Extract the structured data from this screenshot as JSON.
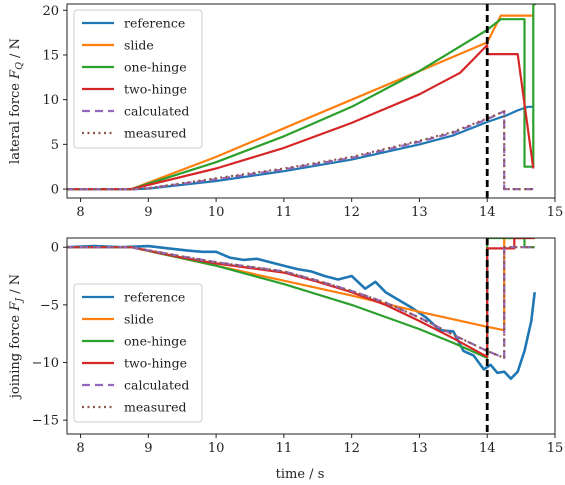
{
  "figure": {
    "xlabel": "time  / s",
    "marker_x": 14,
    "marker_style": "dashed-black"
  },
  "colors": {
    "reference": "#1f77b4",
    "slide": "#ff7f0e",
    "one-hinge": "#2ca02c",
    "two-hinge": "#d62728",
    "calculated": "#9467bd",
    "measured": "#8c564b",
    "marker": "#000000"
  },
  "chart_data": [
    {
      "type": "line",
      "ylabel": "lateral force F_Q  / N",
      "ylabel_main": "lateral force ",
      "ylabel_var": "F",
      "ylabel_sub": "Q",
      "ylabel_unit": "  / N",
      "xlim": [
        7.8,
        15.0
      ],
      "ylim": [
        -1,
        20.7
      ],
      "xticks": [
        8,
        9,
        10,
        11,
        12,
        13,
        14,
        15
      ],
      "yticks": [
        0,
        5,
        10,
        15,
        20
      ],
      "grid": false,
      "legend_position": "upper-left",
      "legend": [
        "reference",
        "slide",
        "one-hinge",
        "two-hinge",
        "calculated",
        "measured"
      ],
      "series": [
        {
          "name": "reference",
          "style": "solid",
          "color": "#1f77b4",
          "x": [
            7.8,
            8.8,
            9.0,
            10.0,
            11.0,
            12.0,
            13.0,
            13.5,
            14.0,
            14.3,
            14.45,
            14.6,
            14.68
          ],
          "y": [
            0,
            0,
            0.05,
            0.9,
            2.0,
            3.3,
            5.0,
            6.0,
            7.5,
            8.3,
            8.8,
            9.2,
            9.2
          ]
        },
        {
          "name": "slide",
          "style": "solid",
          "color": "#ff7f0e",
          "x": [
            7.8,
            8.75,
            10.0,
            11.0,
            12.0,
            13.0,
            14.0,
            14.2,
            14.68
          ],
          "y": [
            0,
            0,
            3.6,
            6.8,
            10.0,
            13.2,
            16.4,
            19.4,
            19.4
          ]
        },
        {
          "name": "one-hinge",
          "style": "solid",
          "color": "#2ca02c",
          "x": [
            7.8,
            8.75,
            10.0,
            11.0,
            12.0,
            13.0,
            14.0,
            14.2,
            14.55,
            14.55,
            14.68,
            14.68,
            14.72
          ],
          "y": [
            0,
            0,
            3.0,
            5.9,
            9.2,
            13.2,
            17.8,
            19.0,
            19.0,
            2.5,
            2.5,
            20.7,
            20.7
          ]
        },
        {
          "name": "two-hinge",
          "style": "solid",
          "color": "#d62728",
          "x": [
            7.8,
            8.75,
            10.0,
            11.0,
            12.0,
            13.0,
            13.6,
            14.0,
            14.0,
            14.45,
            14.68
          ],
          "y": [
            0,
            0,
            2.3,
            4.6,
            7.4,
            10.6,
            13.0,
            16.1,
            15.1,
            15.1,
            2.3
          ]
        },
        {
          "name": "calculated",
          "style": "dashed",
          "color": "#9467bd",
          "x": [
            7.8,
            8.8,
            9.0,
            10.0,
            11.0,
            12.0,
            13.0,
            13.5,
            14.0,
            14.25,
            14.25,
            14.68
          ],
          "y": [
            0,
            0,
            0.1,
            1.1,
            2.2,
            3.5,
            5.3,
            6.3,
            7.8,
            8.7,
            0,
            0
          ]
        },
        {
          "name": "measured",
          "style": "dotted",
          "color": "#8c564b",
          "x": [
            7.8,
            8.8,
            9.0,
            10.0,
            11.0,
            12.0,
            13.0,
            13.5,
            14.0,
            14.25,
            14.25,
            14.68
          ],
          "y": [
            0,
            0,
            0.1,
            1.2,
            2.3,
            3.6,
            5.4,
            6.4,
            7.9,
            8.7,
            0,
            0
          ]
        }
      ]
    },
    {
      "type": "line",
      "ylabel": "joining force F_J  / N",
      "ylabel_main": "joining force ",
      "ylabel_var": "F",
      "ylabel_sub": "J",
      "ylabel_unit": "  / N",
      "xlim": [
        7.8,
        15.0
      ],
      "ylim": [
        -16.2,
        0.8
      ],
      "xticks": [
        8,
        9,
        10,
        11,
        12,
        13,
        14,
        15
      ],
      "yticks": [
        0,
        -5,
        -10,
        -15
      ],
      "grid": false,
      "legend_position": "lower-left",
      "legend": [
        "reference",
        "slide",
        "one-hinge",
        "two-hinge",
        "calculated",
        "measured"
      ],
      "series": [
        {
          "name": "reference",
          "style": "solid",
          "color": "#1f77b4",
          "width": 2.6,
          "x": [
            7.8,
            8.2,
            8.6,
            9.0,
            9.3,
            9.6,
            9.8,
            10.0,
            10.2,
            10.4,
            10.6,
            10.8,
            11.0,
            11.2,
            11.4,
            11.6,
            11.8,
            12.0,
            12.2,
            12.35,
            12.5,
            12.7,
            12.9,
            13.1,
            13.3,
            13.5,
            13.65,
            13.8,
            13.95,
            14.05,
            14.15,
            14.25,
            14.35,
            14.45,
            14.55,
            14.65,
            14.7
          ],
          "y": [
            0.0,
            0.1,
            0.0,
            0.1,
            -0.1,
            -0.3,
            -0.4,
            -0.4,
            -0.9,
            -1.1,
            -1.0,
            -1.3,
            -1.6,
            -1.9,
            -2.1,
            -2.5,
            -2.8,
            -2.5,
            -3.6,
            -3.0,
            -3.9,
            -4.6,
            -5.3,
            -6.1,
            -7.2,
            -7.3,
            -9.0,
            -9.4,
            -10.6,
            -10.2,
            -10.9,
            -10.8,
            -11.4,
            -10.8,
            -9.0,
            -6.4,
            -3.9
          ]
        },
        {
          "name": "slide",
          "style": "solid",
          "color": "#ff7f0e",
          "x": [
            7.8,
            8.75,
            10.0,
            11.0,
            12.0,
            13.0,
            14.0,
            14.25,
            14.25,
            14.7
          ],
          "y": [
            0,
            0,
            -1.6,
            -2.9,
            -4.2,
            -5.6,
            -6.9,
            -7.2,
            0.8,
            0.8
          ]
        },
        {
          "name": "one-hinge",
          "style": "solid",
          "color": "#2ca02c",
          "x": [
            7.8,
            8.75,
            10.0,
            11.0,
            12.0,
            13.0,
            13.5,
            14.0,
            14.0,
            14.55,
            14.55,
            14.7
          ],
          "y": [
            0,
            0,
            -1.6,
            -3.2,
            -5.0,
            -7.1,
            -8.3,
            -9.6,
            0.8,
            0.8,
            0,
            0
          ]
        },
        {
          "name": "two-hinge",
          "style": "solid",
          "color": "#d62728",
          "x": [
            7.8,
            8.75,
            9.5,
            10.0,
            10.5,
            11.0,
            11.5,
            12.0,
            12.5,
            13.0,
            13.5,
            14.0,
            14.0,
            14.4,
            14.4,
            14.7
          ],
          "y": [
            0,
            0,
            -0.9,
            -1.4,
            -1.8,
            -2.2,
            -3.0,
            -3.9,
            -5.0,
            -6.4,
            -7.9,
            -9.5,
            -0.1,
            -0.1,
            0.8,
            0.8
          ]
        },
        {
          "name": "calculated",
          "style": "dashed",
          "color": "#9467bd",
          "x": [
            7.8,
            8.75,
            9.5,
            10.0,
            10.5,
            11.0,
            11.5,
            12.0,
            12.5,
            13.0,
            13.5,
            14.0,
            14.25,
            14.25,
            14.7
          ],
          "y": [
            0,
            0,
            -0.8,
            -1.3,
            -1.7,
            -2.1,
            -2.9,
            -3.8,
            -4.8,
            -6.1,
            -7.6,
            -9.0,
            -9.6,
            0,
            0
          ]
        },
        {
          "name": "measured",
          "style": "dotted",
          "color": "#8c564b",
          "x": [
            7.8,
            8.75,
            9.5,
            10.0,
            10.5,
            11.0,
            11.5,
            12.0,
            12.5,
            13.0,
            13.5,
            14.0,
            14.25,
            14.25,
            14.7
          ],
          "y": [
            0,
            0,
            -0.8,
            -1.3,
            -1.7,
            -2.1,
            -2.9,
            -3.8,
            -4.8,
            -6.1,
            -7.6,
            -9.0,
            -9.6,
            0,
            0
          ]
        }
      ]
    }
  ]
}
